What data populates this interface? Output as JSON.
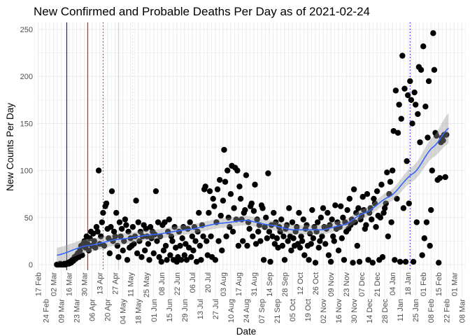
{
  "chart_data": {
    "type": "scatter",
    "title": "New Confirmed and Probable Deaths Per Day as of 2021-02-24",
    "xlabel": "Date",
    "ylabel": "New Counts Per Day",
    "ylim": [
      0,
      250
    ],
    "yticks": [
      0,
      50,
      100,
      150,
      200,
      250
    ],
    "xlim": [
      "2020-02-16",
      "2021-03-11"
    ],
    "xticks": [
      "2020-02-17",
      "2020-02-24",
      "2020-03-02",
      "2020-03-09",
      "2020-03-16",
      "2020-03-23",
      "2020-03-30",
      "2020-04-06",
      "2020-04-13",
      "2020-04-20",
      "2020-04-27",
      "2020-05-04",
      "2020-05-11",
      "2020-05-18",
      "2020-05-25",
      "2020-06-01",
      "2020-06-08",
      "2020-06-15",
      "2020-06-22",
      "2020-06-29",
      "2020-07-06",
      "2020-07-13",
      "2020-07-20",
      "2020-07-27",
      "2020-08-03",
      "2020-08-10",
      "2020-08-17",
      "2020-08-24",
      "2020-08-31",
      "2020-09-07",
      "2020-09-14",
      "2020-09-21",
      "2020-09-28",
      "2020-10-05",
      "2020-10-12",
      "2020-10-19",
      "2020-10-26",
      "2020-11-02",
      "2020-11-09",
      "2020-11-16",
      "2020-11-23",
      "2020-11-30",
      "2020-12-07",
      "2020-12-14",
      "2020-12-21",
      "2020-12-28",
      "2021-01-04",
      "2021-01-11",
      "2021-01-18",
      "2021-01-25",
      "2021-02-01",
      "2021-02-08",
      "2021-02-15",
      "2021-02-22",
      "2021-03-01",
      "2021-03-08"
    ],
    "xtick_labels": [
      "17 Feb",
      "24 Feb",
      "02 Mar",
      "09 Mar",
      "16 Mar",
      "23 Mar",
      "30 Mar",
      "06 Apr",
      "13 Apr",
      "20 Apr",
      "27 Apr",
      "04 May",
      "11 May",
      "18 May",
      "25 May",
      "01 Jun",
      "08 Jun",
      "15 Jun",
      "22 Jun",
      "29 Jun",
      "06 Jul",
      "13 Jul",
      "20 Jul",
      "27 Jul",
      "03 Aug",
      "10 Aug",
      "17 Aug",
      "24 Aug",
      "31 Aug",
      "07 Sep",
      "14 Sep",
      "21 Sep",
      "28 Sep",
      "05 Oct",
      "12 Oct",
      "19 Oct",
      "26 Oct",
      "02 Nov",
      "09 Nov",
      "16 Nov",
      "23 Nov",
      "30 Nov",
      "07 Dec",
      "14 Dec",
      "21 Dec",
      "28 Dec",
      "04 Jan",
      "11 Jan",
      "18 Jan",
      "25 Jan",
      "01 Feb",
      "08 Feb",
      "15 Feb",
      "22 Feb",
      "01 Mar",
      "08 Mar"
    ],
    "grid": true,
    "series": [
      {
        "start_date": "2020-03-05",
        "end_date": "2021-02-24",
        "color": "#000000",
        "values": [
          0,
          0,
          0,
          1,
          0,
          0,
          0,
          1,
          0,
          1,
          2,
          1,
          3,
          2,
          5,
          4,
          8,
          6,
          10,
          12,
          8,
          15,
          20,
          10,
          22,
          25,
          18,
          30,
          22,
          15,
          28,
          35,
          20,
          33,
          25,
          18,
          40,
          35,
          100,
          22,
          30,
          45,
          55,
          20,
          62,
          65,
          38,
          28,
          12,
          40,
          78,
          25,
          35,
          30,
          55,
          20,
          8,
          45,
          30,
          38,
          15,
          25,
          48,
          42,
          5,
          35,
          18,
          28,
          20,
          40,
          22,
          30,
          68,
          12,
          45,
          25,
          35,
          8,
          30,
          42,
          15,
          38,
          30,
          22,
          5,
          40,
          28,
          35,
          12,
          32,
          78,
          25,
          45,
          8,
          30,
          3,
          42,
          15,
          45,
          20,
          5,
          35,
          48,
          10,
          30,
          25,
          5,
          40,
          18,
          3,
          8,
          35,
          20,
          5,
          28,
          40,
          10,
          22,
          5,
          38,
          18,
          45,
          8,
          30,
          15,
          40,
          25,
          3,
          35,
          55,
          20,
          5,
          42,
          30,
          80,
          83,
          25,
          10,
          55,
          78,
          30,
          8,
          70,
          62,
          5,
          45,
          80,
          25,
          90,
          52,
          15,
          68,
          122,
          88,
          30,
          100,
          50,
          40,
          75,
          105,
          35,
          60,
          103,
          48,
          100,
          20,
          83,
          70,
          48,
          25,
          55,
          58,
          95,
          20,
          45,
          38,
          62,
          65,
          30,
          57,
          85,
          22,
          48,
          35,
          42,
          25,
          63,
          60,
          5,
          40,
          50,
          28,
          97,
          35,
          3,
          42,
          30,
          55,
          22,
          45,
          28,
          18,
          40,
          35,
          48,
          20,
          30,
          5,
          38,
          42,
          25,
          60,
          30,
          15,
          45,
          28,
          20,
          35,
          40,
          22,
          55,
          18,
          30,
          25,
          48,
          10,
          38,
          42,
          20,
          5,
          33,
          22,
          58,
          28,
          40,
          2,
          35,
          45,
          18,
          25,
          50,
          30,
          60,
          40,
          22,
          38,
          55,
          10,
          42,
          3,
          48,
          30,
          25,
          63,
          38,
          45,
          15,
          40,
          62,
          28,
          50,
          5,
          45,
          35,
          58,
          38,
          70,
          42,
          48,
          2,
          80,
          45,
          55,
          20,
          60,
          3,
          48,
          52,
          72,
          58,
          38,
          42,
          75,
          5,
          55,
          60,
          48,
          2,
          70,
          65,
          40,
          78,
          52,
          5,
          50,
          85,
          8,
          55,
          60,
          65,
          98,
          30,
          75,
          88,
          45,
          100,
          142,
          5,
          185,
          70,
          140,
          170,
          3,
          155,
          222,
          60,
          187,
          3,
          110,
          180,
          65,
          195,
          175,
          150,
          3,
          183,
          170,
          45,
          160,
          210,
          130,
          207,
          10,
          232,
          28,
          168,
          45,
          135,
          195,
          20,
          58,
          100,
          246,
          207,
          140,
          137,
          90,
          2,
          92,
          130,
          135,
          132,
          138,
          93,
          138
        ]
      }
    ],
    "smooth": {
      "color": "#3366ff",
      "band_color": "#999999",
      "dates": [
        "2020-03-05",
        "2020-04-01",
        "2020-05-01",
        "2020-06-01",
        "2020-07-01",
        "2020-08-01",
        "2020-08-24",
        "2020-09-15",
        "2020-10-05",
        "2020-11-01",
        "2020-11-20",
        "2020-12-10",
        "2021-01-01",
        "2021-01-23",
        "2021-02-10",
        "2021-02-24"
      ],
      "fit": [
        10,
        20,
        27,
        32,
        37,
        44,
        47,
        42,
        37,
        37,
        42,
        55,
        72,
        97,
        125,
        145
      ],
      "se": [
        8,
        7,
        6,
        5,
        5,
        5,
        5,
        5,
        5,
        5,
        5,
        5,
        6,
        8,
        11,
        16
      ]
    },
    "vlines": [
      {
        "date": "2020-03-14",
        "color": "#0000ff",
        "style": "solid"
      },
      {
        "date": "2020-04-02",
        "color": "#ff0000",
        "style": "solid"
      },
      {
        "date": "2020-04-16",
        "color": "#ff0000",
        "style": "dotted"
      },
      {
        "date": "2020-04-30",
        "color": "#ffc0cb",
        "style": "solid"
      },
      {
        "date": "2020-05-13",
        "color": "#ffc0cb",
        "style": "dotted"
      },
      {
        "date": "2021-01-20",
        "color": "#0000ff",
        "style": "dotted"
      }
    ]
  }
}
